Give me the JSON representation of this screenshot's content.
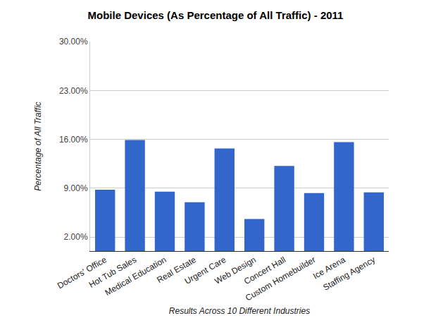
{
  "chart_data": {
    "type": "bar",
    "title": "Mobile Devices (As Percentage of All Traffic) - 2011",
    "x_label": "Results Across 10 Different Industries",
    "y_label": "Percentage of All Traffic",
    "categories": [
      "Doctors' Office",
      "Hot Tub Sales",
      "Medical Education",
      "Real Estate",
      "Urgent Care",
      "Web Design",
      "Concert Hall",
      "Custom Homebuilder",
      "Ice Arena",
      "Staffing Agency"
    ],
    "values": [
      8.8,
      15.9,
      8.5,
      7.0,
      14.7,
      4.6,
      12.2,
      8.3,
      15.6,
      8.4
    ],
    "color": "#3366cc",
    "ylim": [
      0,
      30
    ],
    "yticks": [
      {
        "value": 2,
        "label": "2.00%"
      },
      {
        "value": 9,
        "label": "9.00%"
      },
      {
        "value": 16,
        "label": "16.00%"
      },
      {
        "value": 23,
        "label": "23.00%"
      },
      {
        "value": 30,
        "label": "30.00%"
      }
    ],
    "grid": true
  }
}
